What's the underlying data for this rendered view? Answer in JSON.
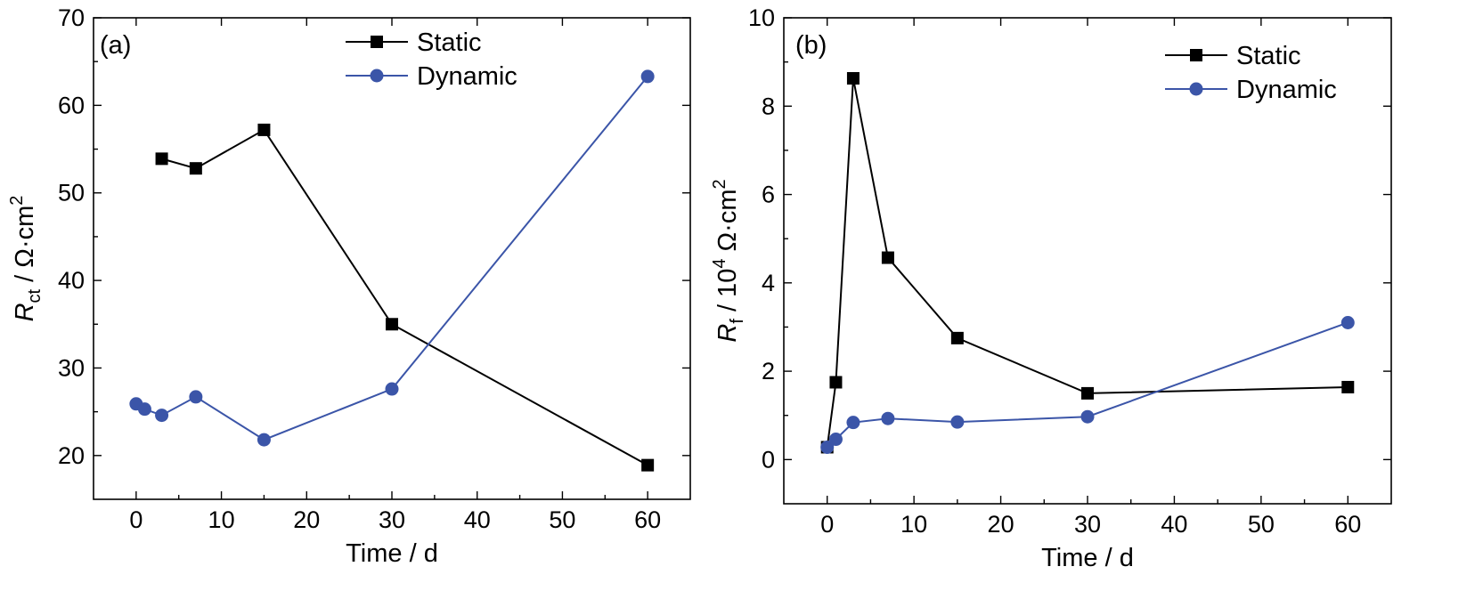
{
  "chart_data": [
    {
      "type": "line",
      "panel_label": "(a)",
      "xlabel": "Time / d",
      "ylabel": {
        "main": "R",
        "sub": "ct",
        "rest": " / Ω·cm",
        "sup": "2"
      },
      "xlim": [
        -5,
        65
      ],
      "ylim": [
        15,
        70
      ],
      "xticks": [
        0,
        10,
        20,
        30,
        40,
        50,
        60
      ],
      "yticks": [
        20,
        30,
        40,
        50,
        60,
        70
      ],
      "legend_position": "top-center",
      "series": [
        {
          "name": "Static",
          "marker": "square",
          "color": "#000000",
          "x": [
            3,
            7,
            15,
            30,
            60
          ],
          "y": [
            53.9,
            52.8,
            57.2,
            35.0,
            18.9
          ]
        },
        {
          "name": "Dynamic",
          "marker": "circle",
          "color": "#3b55a8",
          "x": [
            0,
            1,
            3,
            7,
            15,
            30,
            60
          ],
          "y": [
            25.9,
            25.3,
            24.6,
            26.7,
            21.8,
            27.6,
            63.3
          ]
        }
      ]
    },
    {
      "type": "line",
      "panel_label": "(b)",
      "xlabel": "Time / d",
      "ylabel": {
        "main": "R",
        "sub": "f",
        "rest": " / 10",
        "sup": "4",
        "rest2": " Ω·cm",
        "sup2": "2"
      },
      "xlim": [
        -5,
        65
      ],
      "ylim": [
        -1,
        10
      ],
      "xticks": [
        0,
        10,
        20,
        30,
        40,
        50,
        60
      ],
      "yticks": [
        0,
        2,
        4,
        6,
        8,
        10
      ],
      "legend_position": "top-right",
      "series": [
        {
          "name": "Static",
          "marker": "square",
          "color": "#000000",
          "x": [
            0,
            1,
            3,
            7,
            15,
            30,
            60
          ],
          "y": [
            0.28,
            1.75,
            8.63,
            4.57,
            2.75,
            1.5,
            1.64
          ]
        },
        {
          "name": "Dynamic",
          "marker": "circle",
          "color": "#3b55a8",
          "x": [
            0,
            1,
            3,
            7,
            15,
            30,
            60
          ],
          "y": [
            0.28,
            0.46,
            0.84,
            0.93,
            0.85,
            0.97,
            3.1
          ]
        }
      ]
    }
  ]
}
